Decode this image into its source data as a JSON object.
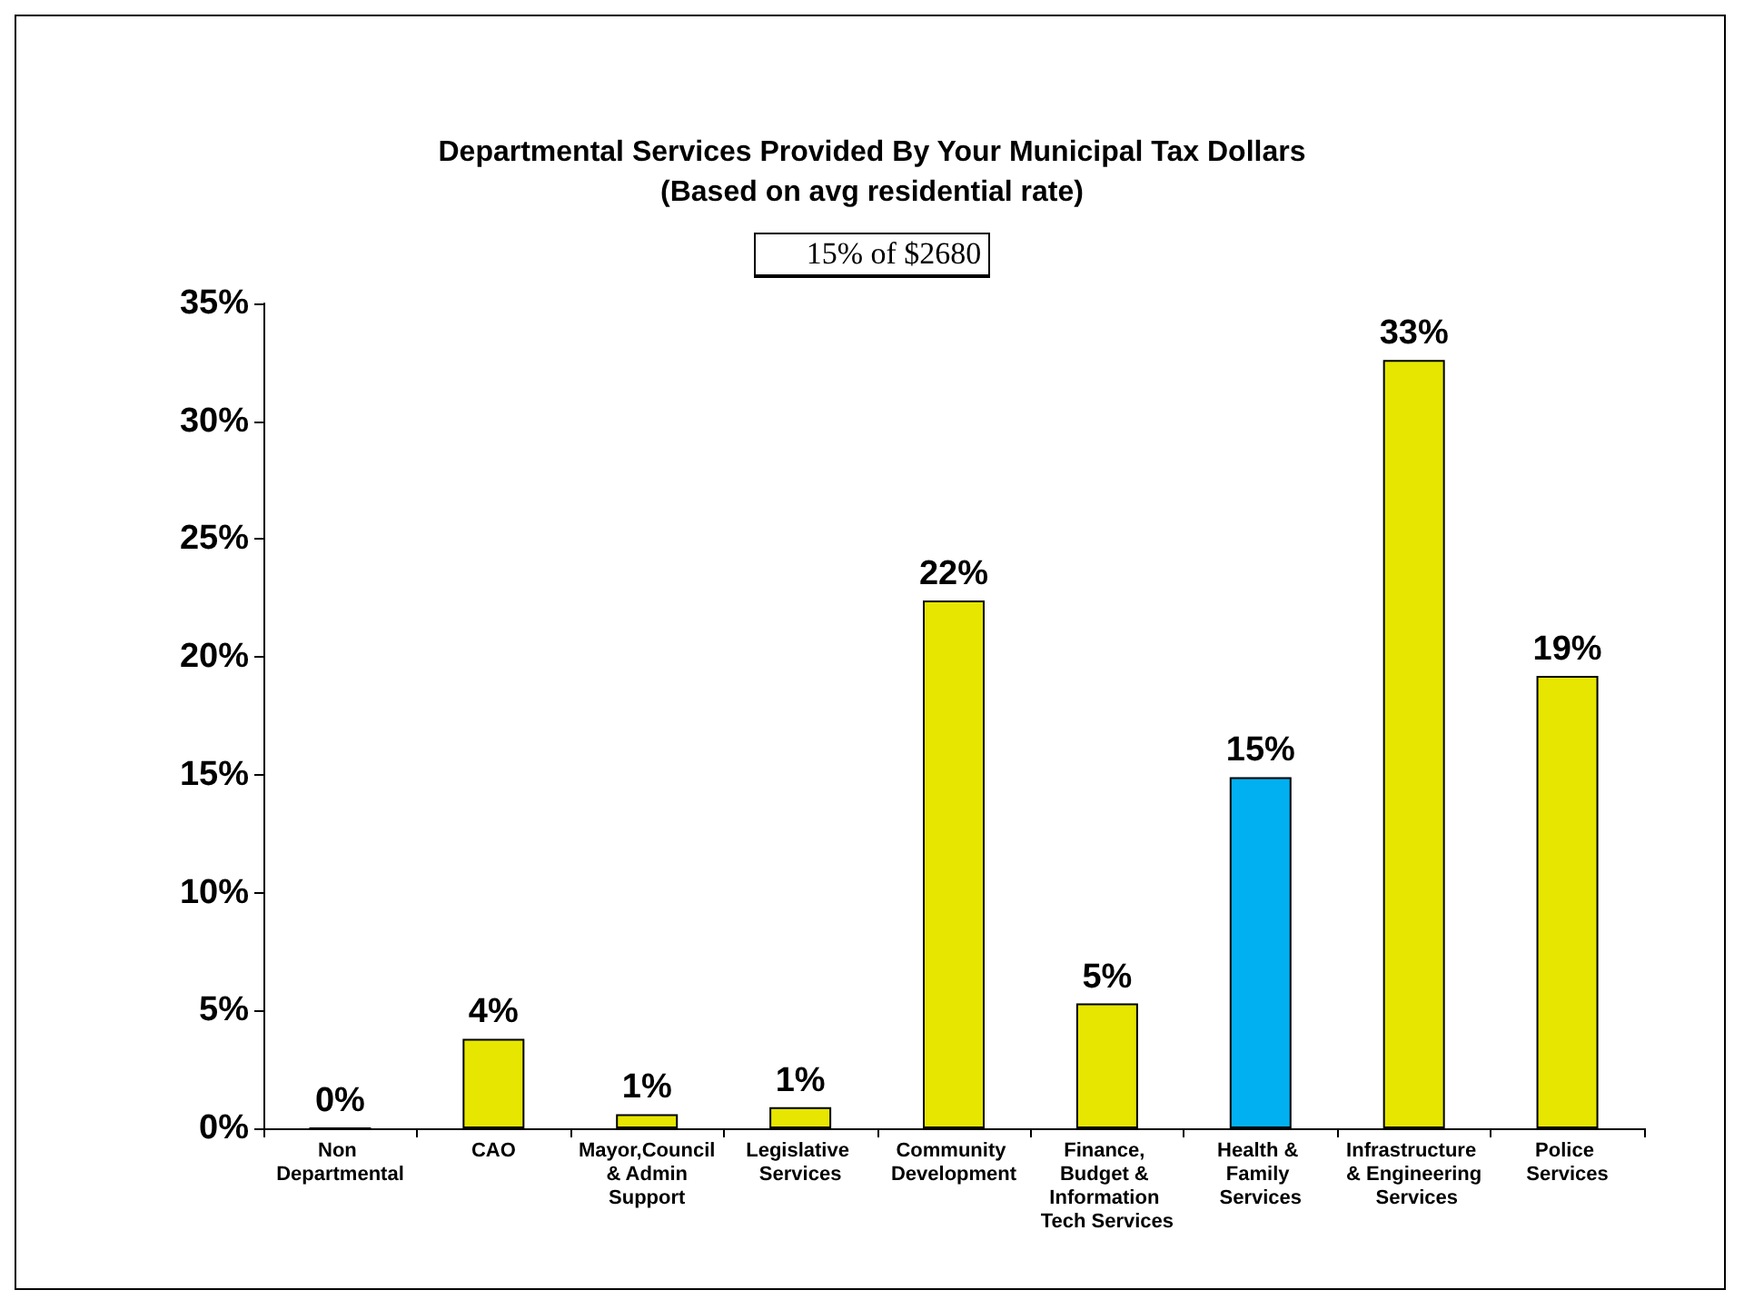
{
  "chart_data": {
    "type": "bar",
    "title": "Departmental Services Provided By Your Municipal Tax Dollars\n(Based on avg residential rate)",
    "annotations": [
      "15% of $2680"
    ],
    "categories": [
      "Non Departmental",
      "CAO",
      "Mayor,Council & Admin Support",
      "Legislative Services",
      "Community Development",
      "Finance, Budget & Information Tech Services",
      "Health & Family Services",
      "Infrastructure & Engineering Services",
      "Police Services"
    ],
    "values": [
      0,
      3.8,
      0.6,
      0.9,
      22.4,
      5.3,
      14.9,
      32.6,
      19.2
    ],
    "value_labels": [
      "0%",
      "4%",
      "1%",
      "1%",
      "22%",
      "5%",
      "15%",
      "33%",
      "19%"
    ],
    "colors": [
      "#e6e600",
      "#e6e600",
      "#e6e600",
      "#e6e600",
      "#e6e600",
      "#e6e600",
      "#00b0f0",
      "#e6e600",
      "#e6e600"
    ],
    "ylim": [
      0,
      35
    ],
    "yticks": [
      {
        "value": 0,
        "label": "0%"
      },
      {
        "value": 5,
        "label": "5%"
      },
      {
        "value": 10,
        "label": "10%"
      },
      {
        "value": 15,
        "label": "15%"
      },
      {
        "value": 20,
        "label": "20%"
      },
      {
        "value": 25,
        "label": "25%"
      },
      {
        "value": 30,
        "label": "30%"
      },
      {
        "value": 35,
        "label": "35%"
      }
    ],
    "grid": false
  }
}
